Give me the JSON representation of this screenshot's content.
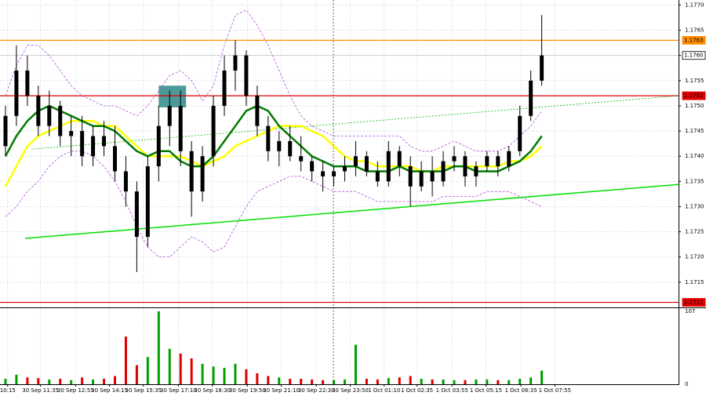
{
  "chart_data": {
    "type": "candlestick",
    "xlim": [
      -0.5,
      61.5
    ],
    "ylim": [
      1.171,
      1.1771
    ],
    "yticks": [
      1.1715,
      {
        "value": 1.172,
        "label": "1.1720"
      },
      1.1725,
      {
        "value": 1.173,
        "label": "1.1730"
      },
      1.1735,
      {
        "value": 1.174,
        "label": "1.1740"
      },
      1.1745,
      {
        "value": 1.175,
        "label": "1.1750"
      },
      1.1755,
      {
        "value": 1.176,
        "label": "1.1760"
      },
      1.1765,
      {
        "value": 1.177,
        "label": "1.1770"
      }
    ],
    "xticks": [
      {
        "value": 0.2,
        "label": "10:15"
      },
      {
        "value": 3.2,
        "label": "30 Sep 11:35"
      },
      {
        "value": 6.4,
        "label": "30 Sep 12:55"
      },
      {
        "value": 9.5,
        "label": "30 Sep 14:15"
      },
      {
        "value": 12.6,
        "label": "30 Sep 15:35"
      },
      {
        "value": 15.8,
        "label": "30 Sep 17:10"
      },
      {
        "value": 18.9,
        "label": "30 Sep 18:30"
      },
      {
        "value": 22.1,
        "label": "30 Sep 19:50"
      },
      {
        "value": 25.2,
        "label": "30 Sep 21:10"
      },
      {
        "value": 28.4,
        "label": "30 Sep 22:30"
      },
      {
        "value": 31.5,
        "label": "30 Sep 23:50"
      },
      {
        "value": 34.6,
        "label": "1 Oct 01:10"
      },
      {
        "value": 37.6,
        "label": "1 Oct 02:35"
      },
      {
        "value": 40.8,
        "label": "1 Oct 03:55"
      },
      {
        "value": 43.9,
        "label": "1 Oct 05:15"
      },
      {
        "value": 47.1,
        "label": "1 Oct 06:35"
      },
      {
        "value": 50.2,
        "label": "1 Oct 07:55"
      }
    ],
    "grid": true,
    "candle_color": "#000000",
    "candles": {
      "open": [
        1.1742,
        1.1748,
        1.1757,
        1.1752,
        1.1746,
        1.175,
        1.1744,
        1.1745,
        1.174,
        1.1744,
        1.1742,
        1.1737,
        1.1733,
        1.1724,
        1.1738,
        1.1746,
        1.175,
        1.1741,
        1.1733,
        1.174,
        1.175,
        1.1757,
        1.176,
        1.1752,
        1.1746,
        1.1741,
        1.1743,
        1.174,
        1.1739,
        1.1737,
        1.1736,
        1.1737,
        1.1738,
        1.174,
        1.1737,
        1.1735,
        1.1741,
        1.1738,
        1.1734,
        1.1737,
        1.1735,
        1.1739,
        1.174,
        1.1736,
        1.1738,
        1.174,
        1.1738,
        1.1741,
        1.1748,
        1.1755
      ],
      "high": [
        1.175,
        1.1762,
        1.176,
        1.1754,
        1.1753,
        1.1751,
        1.1748,
        1.1748,
        1.1746,
        1.1747,
        1.1746,
        1.174,
        1.1735,
        1.174,
        1.175,
        1.1753,
        1.1753,
        1.1743,
        1.1742,
        1.1752,
        1.176,
        1.1763,
        1.1761,
        1.1754,
        1.1748,
        1.1745,
        1.1746,
        1.1744,
        1.174,
        1.1739,
        1.1738,
        1.174,
        1.1743,
        1.1741,
        1.1739,
        1.1743,
        1.1742,
        1.174,
        1.1739,
        1.174,
        1.1741,
        1.1742,
        1.1741,
        1.1739,
        1.1741,
        1.1741,
        1.1742,
        1.175,
        1.1757,
        1.1768
      ],
      "low": [
        1.174,
        1.1746,
        1.175,
        1.1744,
        1.1744,
        1.1742,
        1.174,
        1.1738,
        1.1738,
        1.174,
        1.1735,
        1.173,
        1.1717,
        1.1722,
        1.1735,
        1.1742,
        1.1738,
        1.1728,
        1.1731,
        1.1738,
        1.1748,
        1.1753,
        1.175,
        1.1744,
        1.1739,
        1.1738,
        1.1739,
        1.1737,
        1.1735,
        1.1733,
        1.1734,
        1.1735,
        1.1736,
        1.1736,
        1.1734,
        1.1734,
        1.1736,
        1.173,
        1.1733,
        1.1732,
        1.1734,
        1.1737,
        1.1734,
        1.1734,
        1.1737,
        1.1736,
        1.1737,
        1.174,
        1.1747,
        1.1754
      ],
      "close": [
        1.1748,
        1.1757,
        1.1752,
        1.1746,
        1.175,
        1.1744,
        1.1745,
        1.174,
        1.1744,
        1.1742,
        1.1737,
        1.1733,
        1.1724,
        1.1738,
        1.1746,
        1.175,
        1.1741,
        1.1733,
        1.174,
        1.175,
        1.1757,
        1.176,
        1.1752,
        1.1746,
        1.1741,
        1.1743,
        1.174,
        1.1739,
        1.1737,
        1.1736,
        1.1737,
        1.1738,
        1.174,
        1.1737,
        1.1735,
        1.1741,
        1.1738,
        1.1734,
        1.1737,
        1.1735,
        1.1739,
        1.174,
        1.1736,
        1.1738,
        1.174,
        1.1738,
        1.1741,
        1.1748,
        1.1755,
        1.176
      ]
    },
    "lines": [
      {
        "color": "#ffff00",
        "width": 2.5,
        "dash": false,
        "values": [
          1.1734,
          1.1738,
          1.1742,
          1.1744,
          1.1745,
          1.1746,
          1.1747,
          1.1747,
          1.1747,
          1.1746,
          1.1746,
          1.1744,
          1.1742,
          1.174,
          1.174,
          1.174,
          1.174,
          1.1739,
          1.1738,
          1.1739,
          1.174,
          1.1742,
          1.1743,
          1.1744,
          1.1745,
          1.1746,
          1.1746,
          1.1746,
          1.1745,
          1.1744,
          1.1742,
          1.174,
          1.1739,
          1.1739,
          1.1738,
          1.1738,
          1.1738,
          1.1738,
          1.1737,
          1.1737,
          1.1738,
          1.1738,
          1.1738,
          1.1738,
          1.1738,
          1.1738,
          1.1739,
          1.1739,
          1.174,
          1.1742
        ]
      },
      {
        "color": "#007a00",
        "width": 2.5,
        "dash": false,
        "values": [
          1.174,
          1.1744,
          1.1747,
          1.1749,
          1.175,
          1.1749,
          1.1748,
          1.1747,
          1.1746,
          1.1746,
          1.1745,
          1.1743,
          1.1741,
          1.174,
          1.1741,
          1.1741,
          1.1739,
          1.1738,
          1.1738,
          1.174,
          1.1743,
          1.1746,
          1.1749,
          1.175,
          1.1749,
          1.1746,
          1.1744,
          1.1742,
          1.174,
          1.1739,
          1.1738,
          1.1738,
          1.1738,
          1.1737,
          1.1737,
          1.1737,
          1.1738,
          1.1737,
          1.1737,
          1.1737,
          1.1737,
          1.1738,
          1.1738,
          1.1737,
          1.1737,
          1.1737,
          1.1738,
          1.1739,
          1.1741,
          1.1744
        ]
      },
      {
        "color": "#b04fd8",
        "width": 0.8,
        "dash": true,
        "values": [
          1.1752,
          1.1758,
          1.1762,
          1.1762,
          1.176,
          1.1757,
          1.1754,
          1.1752,
          1.1751,
          1.175,
          1.175,
          1.1749,
          1.1748,
          1.175,
          1.1753,
          1.1756,
          1.1757,
          1.1755,
          1.1751,
          1.1754,
          1.1762,
          1.1768,
          1.1769,
          1.1766,
          1.1762,
          1.1757,
          1.1752,
          1.1748,
          1.1746,
          1.1745,
          1.1744,
          1.1744,
          1.1744,
          1.1744,
          1.1744,
          1.1744,
          1.1744,
          1.1742,
          1.1741,
          1.1741,
          1.1742,
          1.1743,
          1.1742,
          1.1741,
          1.1741,
          1.1741,
          1.1742,
          1.1744,
          1.1746,
          1.1749
        ]
      },
      {
        "color": "#b04fd8",
        "width": 0.8,
        "dash": true,
        "values": [
          1.1728,
          1.173,
          1.1733,
          1.1735,
          1.1738,
          1.174,
          1.1741,
          1.1741,
          1.174,
          1.1738,
          1.1735,
          1.1731,
          1.1726,
          1.1722,
          1.172,
          1.172,
          1.1722,
          1.1724,
          1.1723,
          1.1721,
          1.1722,
          1.1726,
          1.173,
          1.1733,
          1.1734,
          1.1735,
          1.1736,
          1.1736,
          1.1735,
          1.1734,
          1.1733,
          1.1733,
          1.1733,
          1.1732,
          1.1731,
          1.1731,
          1.1731,
          1.1731,
          1.1731,
          1.1731,
          1.1732,
          1.1732,
          1.1732,
          1.1732,
          1.1733,
          1.1733,
          1.1733,
          1.1732,
          1.1731,
          1.173
        ]
      }
    ],
    "trendlines": [
      {
        "color": "#00e000",
        "width": 1.5,
        "dash": false,
        "from": [
          1.8,
          1.17237
        ],
        "to": [
          61.5,
          1.17344
        ]
      },
      {
        "color": "#00c000",
        "width": 0.8,
        "dash": true,
        "from": [
          2.4,
          1.17414
        ],
        "to": [
          61.5,
          1.1752
        ]
      }
    ],
    "zones": [
      {
        "color": "#4a9a9a",
        "from": [
          14,
          1.1754
        ],
        "to": [
          16.5,
          1.17497
        ]
      }
    ],
    "levels": [
      {
        "value": 1.1763,
        "label": "1.1763",
        "color": "#ff8c00",
        "text_color": "#000000",
        "line": true
      },
      {
        "value": 1.1752,
        "label": "1.1752",
        "color": "#e00000",
        "text_color": "#ffffff",
        "line": true
      },
      {
        "value": 1.1711,
        "label": "1.1711",
        "color": "#e00000",
        "text_color": "#ffffff",
        "line": true
      },
      {
        "value": 1.176,
        "label": "1.1760",
        "color": "#ffffff",
        "text_color": "#000000",
        "line": false
      }
    ],
    "volume": {
      "up_color": "#00a000",
      "down_color": "#e00000",
      "ylim": [
        0,
        107
      ],
      "yticks": [
        0,
        107
      ],
      "values": [
        8,
        14,
        10,
        9,
        7,
        8,
        6,
        10,
        7,
        8,
        12,
        70,
        28,
        40,
        107,
        52,
        45,
        38,
        30,
        26,
        24,
        30,
        22,
        16,
        12,
        10,
        8,
        8,
        7,
        6,
        6,
        7,
        58,
        8,
        7,
        9,
        10,
        12,
        8,
        7,
        7,
        6,
        6,
        7,
        7,
        6,
        6,
        8,
        10,
        20
      ]
    }
  }
}
